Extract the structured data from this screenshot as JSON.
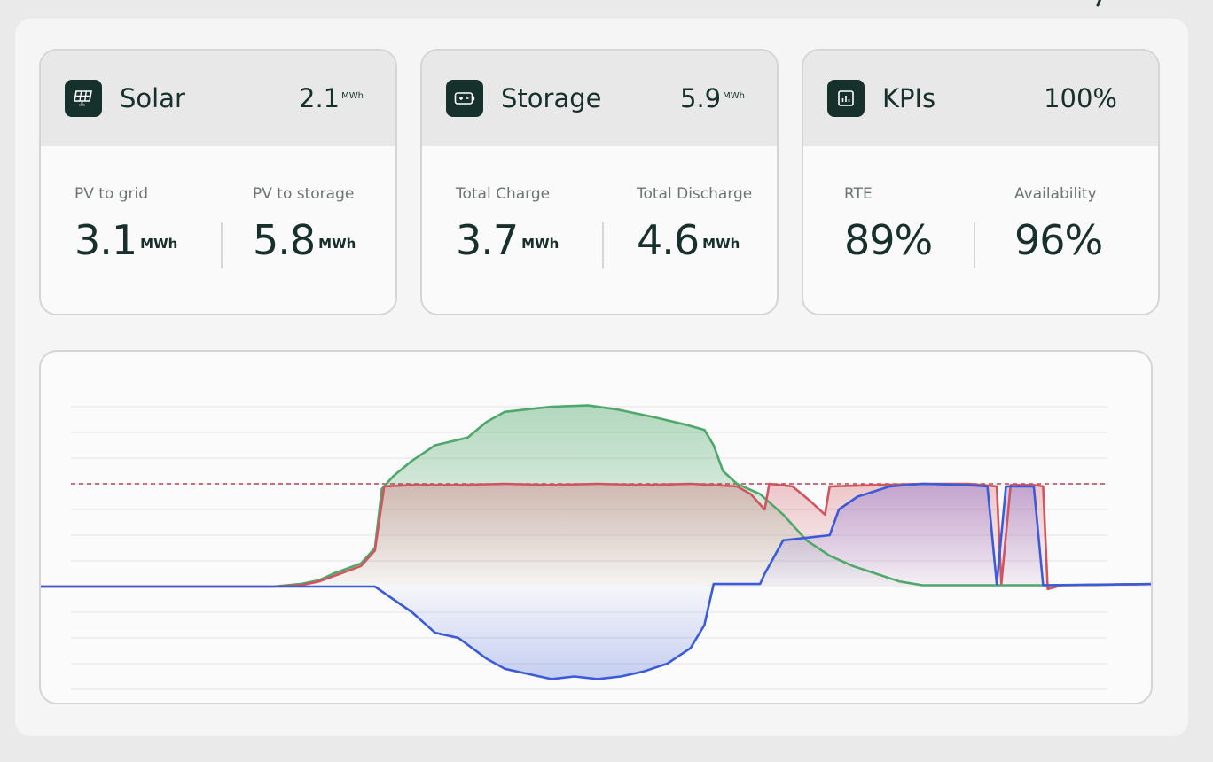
{
  "cards": [
    {
      "id": "solar",
      "title": "Solar",
      "icon": "solar-panel-icon",
      "total_value": "2.1",
      "total_unit": "MWh",
      "metrics": [
        {
          "label": "PV to grid",
          "value": "3.1",
          "unit": "MWh"
        },
        {
          "label": "PV to storage",
          "value": "5.8",
          "unit": "MWh"
        }
      ]
    },
    {
      "id": "storage",
      "title": "Storage",
      "icon": "battery-icon",
      "total_value": "5.9",
      "total_unit": "MWh",
      "metrics": [
        {
          "label": "Total Charge",
          "value": "3.7",
          "unit": "MWh"
        },
        {
          "label": "Total Discharge",
          "value": "4.6",
          "unit": "MWh"
        }
      ]
    },
    {
      "id": "kpis",
      "title": "KPIs",
      "icon": "bar-chart-icon",
      "total_value": "100%",
      "total_unit": "",
      "metrics": [
        {
          "label": "RTE",
          "value": "89%",
          "unit": ""
        },
        {
          "label": "Availability",
          "value": "96%",
          "unit": ""
        }
      ]
    }
  ],
  "colors": {
    "solar": "#4fa86a",
    "grid": "#cf5660",
    "battery": "#3c5bd8",
    "icon_bg": "#16302b",
    "text": "#17302b"
  },
  "chart_data": {
    "type": "area",
    "xlabel": "",
    "ylabel": "",
    "x_range": [
      0,
      24
    ],
    "ylim": [
      -4,
      8
    ],
    "grid": true,
    "reference_line": {
      "y": 4,
      "style": "dashed",
      "color": "#b24650"
    },
    "series": [
      {
        "key": "solar",
        "color": "#4fa86a",
        "points": [
          [
            0,
            0
          ],
          [
            5,
            0
          ],
          [
            5.6,
            0.1
          ],
          [
            6.0,
            0.25
          ],
          [
            6.3,
            0.5
          ],
          [
            6.6,
            0.7
          ],
          [
            6.9,
            0.9
          ],
          [
            7.2,
            1.5
          ],
          [
            7.35,
            3.8
          ],
          [
            7.6,
            4.3
          ],
          [
            8.0,
            4.9
          ],
          [
            8.5,
            5.5
          ],
          [
            9.2,
            5.8
          ],
          [
            9.6,
            6.4
          ],
          [
            10.0,
            6.8
          ],
          [
            11.0,
            7.0
          ],
          [
            11.8,
            7.05
          ],
          [
            12.4,
            6.9
          ],
          [
            13.2,
            6.6
          ],
          [
            13.9,
            6.3
          ],
          [
            14.3,
            6.1
          ],
          [
            14.5,
            5.5
          ],
          [
            14.7,
            4.5
          ],
          [
            15.0,
            4.0
          ],
          [
            15.5,
            3.6
          ],
          [
            16.0,
            2.8
          ],
          [
            16.5,
            1.8
          ],
          [
            17.0,
            1.2
          ],
          [
            17.5,
            0.8
          ],
          [
            18.0,
            0.5
          ],
          [
            18.5,
            0.2
          ],
          [
            19.0,
            0.05
          ],
          [
            21.5,
            0.05
          ],
          [
            22.0,
            0.05
          ],
          [
            24,
            0.1
          ]
        ]
      },
      {
        "key": "grid",
        "color": "#cf5660",
        "points": [
          [
            0,
            0
          ],
          [
            5,
            0
          ],
          [
            5.6,
            0.05
          ],
          [
            6.0,
            0.2
          ],
          [
            6.3,
            0.4
          ],
          [
            6.6,
            0.6
          ],
          [
            6.9,
            0.8
          ],
          [
            7.2,
            1.4
          ],
          [
            7.4,
            3.9
          ],
          [
            8,
            3.95
          ],
          [
            9,
            3.95
          ],
          [
            10,
            4.0
          ],
          [
            11,
            3.95
          ],
          [
            12,
            4.0
          ],
          [
            13,
            3.95
          ],
          [
            14,
            4.0
          ],
          [
            14.5,
            3.95
          ],
          [
            15.0,
            3.9
          ],
          [
            15.3,
            3.6
          ],
          [
            15.6,
            3.0
          ],
          [
            15.7,
            4.0
          ],
          [
            16.2,
            3.9
          ],
          [
            16.6,
            3.3
          ],
          [
            16.9,
            2.8
          ],
          [
            17.0,
            3.9
          ],
          [
            18,
            3.95
          ],
          [
            19,
            4.0
          ],
          [
            20,
            4.0
          ],
          [
            20.6,
            3.9
          ],
          [
            20.7,
            0.1
          ],
          [
            20.9,
            3.95
          ],
          [
            21.4,
            3.95
          ],
          [
            21.6,
            3.9
          ],
          [
            21.7,
            -0.1
          ],
          [
            22,
            0.05
          ],
          [
            24,
            0.1
          ]
        ]
      },
      {
        "key": "battery",
        "color": "#3c5bd8",
        "points": [
          [
            0,
            0
          ],
          [
            7.2,
            0
          ],
          [
            7.6,
            -0.5
          ],
          [
            8.0,
            -1.0
          ],
          [
            8.5,
            -1.8
          ],
          [
            9.0,
            -2.0
          ],
          [
            9.3,
            -2.4
          ],
          [
            9.6,
            -2.8
          ],
          [
            10.0,
            -3.2
          ],
          [
            10.5,
            -3.4
          ],
          [
            11.0,
            -3.6
          ],
          [
            11.5,
            -3.5
          ],
          [
            12.0,
            -3.6
          ],
          [
            12.5,
            -3.5
          ],
          [
            13.0,
            -3.3
          ],
          [
            13.5,
            -3.0
          ],
          [
            14.0,
            -2.4
          ],
          [
            14.3,
            -1.5
          ],
          [
            14.5,
            0.1
          ],
          [
            15.5,
            0.1
          ],
          [
            15.6,
            0.5
          ],
          [
            16.0,
            1.8
          ],
          [
            16.5,
            1.9
          ],
          [
            17.0,
            2.0
          ],
          [
            17.2,
            3.0
          ],
          [
            17.6,
            3.5
          ],
          [
            18.3,
            3.9
          ],
          [
            19.0,
            4.0
          ],
          [
            20.0,
            3.95
          ],
          [
            20.4,
            3.9
          ],
          [
            20.6,
            0.1
          ],
          [
            20.8,
            3.9
          ],
          [
            21.4,
            3.9
          ],
          [
            21.6,
            0.05
          ],
          [
            24,
            0.1
          ]
        ]
      }
    ]
  }
}
